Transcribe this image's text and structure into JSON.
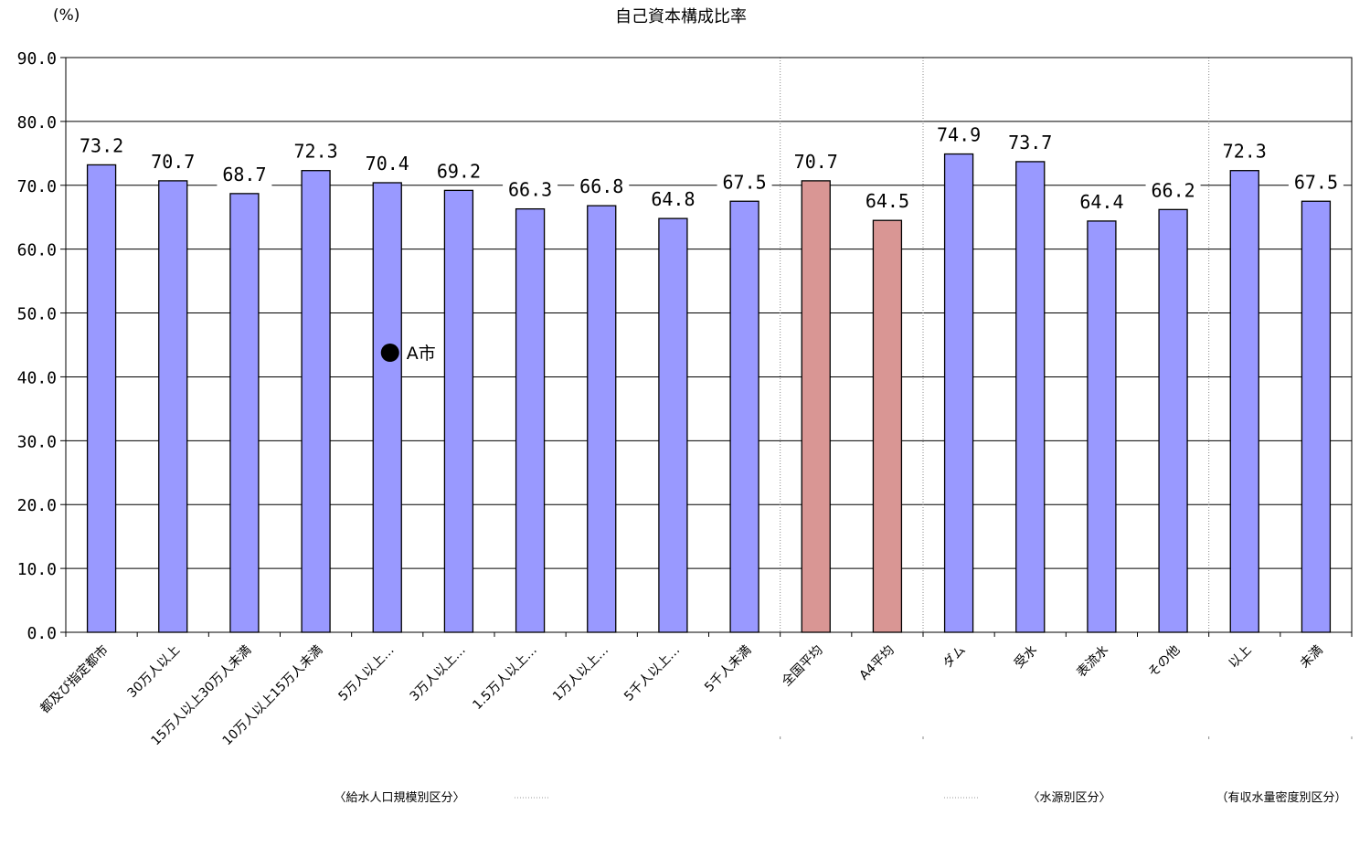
{
  "chart_data": {
    "type": "bar",
    "title": "自己資本構成比率",
    "ylabel": "(%)",
    "xlabel": "",
    "ylim": [
      0,
      90
    ],
    "yticks": [
      "0.0",
      "10.0",
      "20.0",
      "30.0",
      "40.0",
      "50.0",
      "60.0",
      "70.0",
      "80.0",
      "90.0"
    ],
    "grid": true,
    "categories": [
      "都及び指定都市",
      "30万人以上",
      "15万人以上30万人未満",
      "10万人以上15万人未満",
      "5万人以上…",
      "3万人以上…",
      "1.5万人以上…",
      "1万人以上…",
      "5千人以上…",
      "5千人未満",
      "全国平均",
      "A4平均",
      "ダム",
      "受水",
      "表流水",
      "その他",
      "以上",
      "未満"
    ],
    "values": [
      73.2,
      70.7,
      68.7,
      72.3,
      70.4,
      69.2,
      66.3,
      66.8,
      64.8,
      67.5,
      70.7,
      64.5,
      74.9,
      73.7,
      64.4,
      66.2,
      72.3,
      67.5
    ],
    "value_labels": [
      "73.2",
      "70.7",
      "68.7",
      "72.3",
      "70.4",
      "69.2",
      "66.3",
      "66.8",
      "64.8",
      "67.5",
      "70.7",
      "64.5",
      "74.9",
      "73.7",
      "64.4",
      "66.2",
      "72.3",
      "67.5"
    ],
    "highlight_indices": [
      10,
      11
    ],
    "colors": {
      "bar": "#9999ff",
      "highlight": "#d99694",
      "outline": "#000000",
      "grid": "#000000"
    },
    "groups": [
      {
        "label": "〈給水人口規模別区分〉",
        "start": 0,
        "end": 9
      },
      {
        "label": "〈水源別区分〉",
        "start": 12,
        "end": 15
      },
      {
        "label": "（有収水量密度別区分）",
        "start": 16,
        "end": 17
      }
    ],
    "annotation": {
      "text": "A市",
      "category_index": 4,
      "value": 44.5
    }
  }
}
